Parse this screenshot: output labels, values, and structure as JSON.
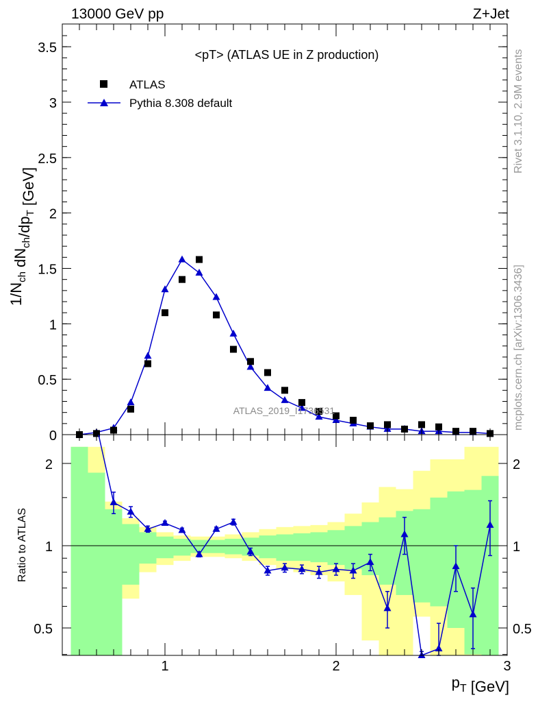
{
  "header": {
    "left": "13000 GeV pp",
    "right": "Z+Jet"
  },
  "side_labels": {
    "rivet": "Rivet 3.1.10,  2.9M events",
    "mcplots": "mcplots.cern.ch [arXiv:1306.3436]"
  },
  "watermark": "ATLAS_2019_I1736531",
  "chart_data": [
    {
      "type": "scatter",
      "title": "<pT> (ATLAS UE in Z production)",
      "ylabel": "1/N_ch dN_ch/dp_T [GeV]",
      "xlabel": "p_T [GeV]",
      "xlim": [
        0.4,
        3.0
      ],
      "ylim": [
        0,
        3.7
      ],
      "yticks": [
        "0",
        "0.5",
        "1",
        "1.5",
        "2",
        "2.5",
        "3",
        "3.5"
      ],
      "legend": {
        "position": "top-left",
        "entries": [
          "ATLAS",
          "Pythia 8.308 default"
        ]
      },
      "series": [
        {
          "name": "ATLAS",
          "marker": "square",
          "color": "#000000",
          "x": [
            0.5,
            0.6,
            0.7,
            0.8,
            0.9,
            1.0,
            1.1,
            1.2,
            1.3,
            1.4,
            1.5,
            1.6,
            1.7,
            1.8,
            1.9,
            2.0,
            2.1,
            2.2,
            2.3,
            2.4,
            2.5,
            2.6,
            2.7,
            2.8,
            2.9
          ],
          "y": [
            0.0,
            0.01,
            0.04,
            0.23,
            0.64,
            1.1,
            1.4,
            1.58,
            1.08,
            0.77,
            0.66,
            0.56,
            0.4,
            0.29,
            0.21,
            0.17,
            0.13,
            0.08,
            0.09,
            0.05,
            0.09,
            0.07,
            0.03,
            0.03,
            0.01
          ]
        },
        {
          "name": "Pythia 8.308 default",
          "marker": "triangle",
          "color": "#0000cc",
          "x": [
            0.5,
            0.6,
            0.7,
            0.8,
            0.9,
            1.0,
            1.1,
            1.2,
            1.3,
            1.4,
            1.5,
            1.6,
            1.7,
            1.8,
            1.9,
            2.0,
            2.1,
            2.2,
            2.3,
            2.4,
            2.5,
            2.6,
            2.7,
            2.8,
            2.9
          ],
          "y": [
            0.0,
            0.02,
            0.06,
            0.29,
            0.71,
            1.31,
            1.58,
            1.46,
            1.24,
            0.91,
            0.61,
            0.42,
            0.31,
            0.24,
            0.16,
            0.13,
            0.1,
            0.07,
            0.05,
            0.05,
            0.03,
            0.03,
            0.02,
            0.02,
            0.01
          ]
        }
      ]
    },
    {
      "type": "line",
      "ylabel": "Ratio to ATLAS",
      "xlabel": "p_T [GeV]",
      "xlim": [
        0.4,
        3.0
      ],
      "ylim": [
        0.35,
        2.3
      ],
      "ylog": true,
      "xticks": [
        "1",
        "2",
        "3"
      ],
      "yticks": [
        "0.5",
        "1",
        "2"
      ],
      "reference_line": 1,
      "band_colors": {
        "inner": "#99ff99",
        "outer": "#ffff99"
      },
      "bands": {
        "x_edges": [
          0.45,
          0.55,
          0.65,
          0.75,
          0.85,
          0.95,
          1.05,
          1.15,
          1.25,
          1.35,
          1.45,
          1.55,
          1.65,
          1.75,
          1.85,
          1.95,
          2.05,
          2.15,
          2.25,
          2.35,
          2.45,
          2.55,
          2.65,
          2.75,
          2.85,
          2.95
        ],
        "inner_lo": [
          0.35,
          0.35,
          0.35,
          0.72,
          0.86,
          0.9,
          0.92,
          0.94,
          0.94,
          0.93,
          0.92,
          0.9,
          0.88,
          0.88,
          0.87,
          0.85,
          0.82,
          0.78,
          0.72,
          0.66,
          0.62,
          0.6,
          0.5,
          0.4,
          0.35
        ],
        "inner_hi": [
          2.3,
          1.85,
          1.36,
          1.2,
          1.12,
          1.08,
          1.06,
          1.05,
          1.05,
          1.06,
          1.07,
          1.09,
          1.1,
          1.11,
          1.12,
          1.14,
          1.18,
          1.22,
          1.27,
          1.34,
          1.36,
          1.5,
          1.58,
          1.6,
          1.8
        ],
        "outer_lo": [
          0.35,
          0.35,
          0.35,
          0.64,
          0.8,
          0.85,
          0.88,
          0.91,
          0.91,
          0.9,
          0.88,
          0.85,
          0.82,
          0.8,
          0.78,
          0.74,
          0.66,
          0.45,
          0.35,
          0.35,
          0.55,
          0.35,
          0.35,
          0.35,
          0.35
        ],
        "outer_hi": [
          2.3,
          2.3,
          1.45,
          1.26,
          1.17,
          1.12,
          1.09,
          1.08,
          1.08,
          1.1,
          1.12,
          1.15,
          1.17,
          1.18,
          1.19,
          1.22,
          1.31,
          1.44,
          1.64,
          1.61,
          1.88,
          2.07,
          2.07,
          2.3,
          2.3
        ]
      },
      "series": [
        {
          "name": "Pythia 8.308 default",
          "color": "#0000cc",
          "x": [
            0.7,
            0.8,
            0.9,
            1.0,
            1.1,
            1.2,
            1.3,
            1.4,
            1.5,
            1.6,
            1.7,
            1.8,
            1.9,
            2.0,
            2.1,
            2.2,
            2.3,
            2.4,
            2.5,
            2.6,
            2.7,
            2.8,
            2.9
          ],
          "y": [
            1.44,
            1.33,
            1.15,
            1.21,
            1.14,
            0.93,
            1.15,
            1.22,
            0.95,
            0.81,
            0.83,
            0.82,
            0.8,
            0.82,
            0.81,
            0.87,
            0.59,
            1.1,
            0.35,
            0.42,
            0.84,
            0.56,
            1.19
          ],
          "err": [
            0.13,
            0.06,
            0.03,
            0.02,
            0.02,
            0.02,
            0.02,
            0.03,
            0.03,
            0.03,
            0.03,
            0.03,
            0.04,
            0.04,
            0.05,
            0.06,
            0.09,
            0.17,
            0.06,
            0.1,
            0.16,
            0.14,
            0.27
          ]
        }
      ]
    }
  ]
}
